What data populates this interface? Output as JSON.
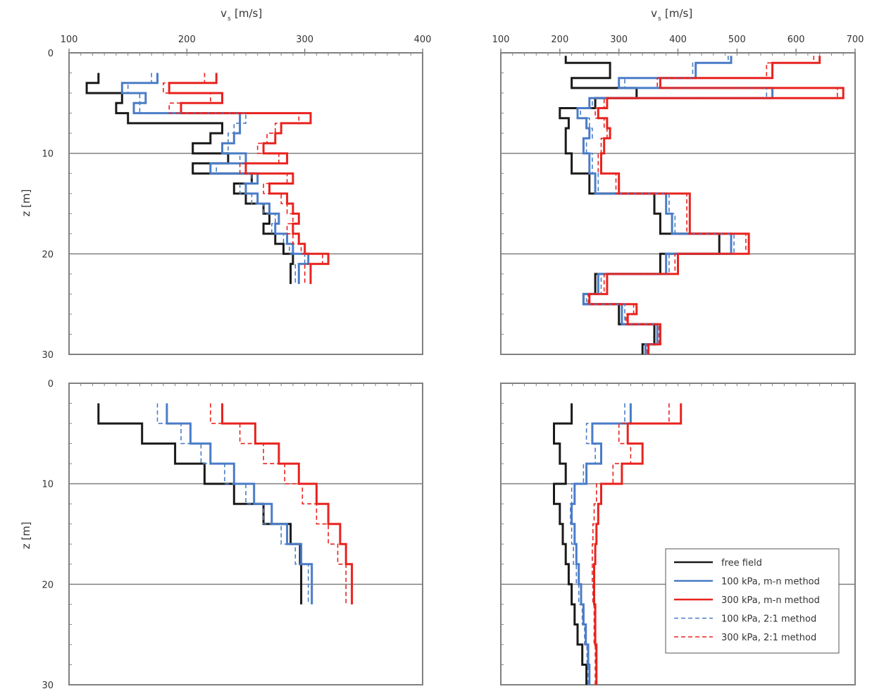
{
  "figure": {
    "top_axis_labels": [
      "v",
      "v"
    ],
    "top_axis_label_sub": "s",
    "top_axis_label_unit": "[m/s]",
    "z_axis_label": "z [m]"
  },
  "legend": {
    "placement": "bottom-right",
    "entries": [
      {
        "label": "free field",
        "color": "#1a1a1a",
        "dash": "solid"
      },
      {
        "label": "100 kPa, m-n method",
        "color": "#4a7cc7",
        "dash": "solid"
      },
      {
        "label": "300 kPa, m-n method",
        "color": "#e8231f",
        "dash": "solid"
      },
      {
        "label": "100 kPa, 2:1 method",
        "color": "#4a7cc7",
        "dash": "dashed"
      },
      {
        "label": "300 kPa, 2:1 method",
        "color": "#e8231f",
        "dash": "dashed"
      }
    ]
  },
  "colors": {
    "free": "#1a1a1a",
    "blue": "#4a7cc7",
    "red": "#e8231f",
    "axis": "#808080"
  },
  "chart_data": [
    {
      "type": "line",
      "panel": "top-left",
      "xlim": [
        100,
        400
      ],
      "ylim": [
        0,
        30
      ],
      "x_reversed_y": true,
      "x_ticks": [
        100,
        200,
        300,
        400
      ],
      "y_ticks": [
        0,
        10,
        20,
        30
      ],
      "grid_y": [
        10,
        20
      ],
      "xlabel": "v_s [m/s]",
      "ylabel": "z [m]",
      "z": [
        2,
        3,
        4,
        5,
        6,
        7,
        8,
        9,
        10,
        11,
        12,
        13,
        14,
        15,
        16,
        17,
        18,
        19,
        20,
        21,
        22
      ],
      "series": [
        {
          "name": "free field",
          "values": [
            125,
            115,
            145,
            140,
            150,
            230,
            220,
            205,
            235,
            205,
            255,
            240,
            250,
            265,
            270,
            265,
            275,
            282,
            290,
            288,
            288
          ]
        },
        {
          "name": "100 kPa, m-n method",
          "values": [
            175,
            145,
            165,
            155,
            245,
            245,
            240,
            230,
            250,
            220,
            260,
            250,
            260,
            270,
            278,
            275,
            285,
            290,
            303,
            295,
            295
          ]
        },
        {
          "name": "300 kPa, m-n method",
          "values": [
            225,
            185,
            230,
            195,
            305,
            280,
            275,
            265,
            285,
            250,
            290,
            270,
            285,
            290,
            295,
            290,
            295,
            300,
            320,
            305,
            305
          ]
        },
        {
          "name": "100 kPa, 2:1 method",
          "values": [
            170,
            150,
            160,
            160,
            250,
            240,
            235,
            235,
            245,
            225,
            255,
            245,
            255,
            265,
            275,
            272,
            282,
            287,
            300,
            292,
            292
          ]
        },
        {
          "name": "300 kPa, 2:1 method",
          "values": [
            215,
            180,
            220,
            185,
            295,
            275,
            268,
            260,
            278,
            245,
            285,
            265,
            280,
            285,
            290,
            285,
            290,
            297,
            315,
            300,
            300
          ]
        }
      ]
    },
    {
      "type": "line",
      "panel": "top-right",
      "xlim": [
        100,
        700
      ],
      "ylim": [
        0,
        30
      ],
      "x_reversed_y": true,
      "x_ticks": [
        100,
        200,
        300,
        400,
        500,
        600,
        700
      ],
      "y_ticks": [
        0,
        10,
        20,
        30
      ],
      "grid_y": [
        10,
        20
      ],
      "xlabel": "v_s [m/s]",
      "z": [
        0.3,
        1.0,
        2.5,
        3.5,
        4.5,
        5.5,
        6.5,
        7.5,
        8.5,
        10,
        12,
        14,
        16,
        18,
        20,
        22,
        24,
        25,
        26,
        27,
        29
      ],
      "series": [
        {
          "name": "free field",
          "values": [
            210,
            285,
            220,
            330,
            260,
            200,
            215,
            210,
            210,
            220,
            250,
            360,
            370,
            470,
            370,
            260,
            240,
            300,
            300,
            360,
            340
          ]
        },
        {
          "name": "100 kPa, m-n method",
          "values": [
            490,
            430,
            300,
            560,
            250,
            230,
            245,
            250,
            240,
            250,
            260,
            380,
            390,
            490,
            380,
            265,
            240,
            305,
            305,
            365,
            345
          ]
        },
        {
          "name": "300 kPa, m-n method",
          "values": [
            640,
            560,
            370,
            680,
            280,
            265,
            280,
            285,
            275,
            270,
            300,
            420,
            420,
            520,
            400,
            280,
            250,
            330,
            315,
            370,
            350
          ]
        },
        {
          "name": "100 kPa, 2:1 method",
          "values": [
            485,
            425,
            310,
            550,
            255,
            235,
            250,
            255,
            245,
            255,
            265,
            385,
            395,
            495,
            385,
            270,
            245,
            310,
            310,
            365,
            345
          ]
        },
        {
          "name": "300 kPa, 2:1 method",
          "values": [
            630,
            550,
            365,
            670,
            275,
            260,
            275,
            280,
            270,
            265,
            295,
            415,
            415,
            515,
            395,
            275,
            248,
            325,
            312,
            368,
            348
          ]
        }
      ]
    },
    {
      "type": "line",
      "panel": "bottom-left",
      "xlim": [
        100,
        400
      ],
      "ylim": [
        0,
        30
      ],
      "x_reversed_y": true,
      "x_ticks": [
        100,
        200,
        300,
        400
      ],
      "y_ticks": [
        0,
        10,
        20,
        30
      ],
      "grid_y": [
        10,
        20
      ],
      "ylabel": "z [m]",
      "z": [
        2,
        4,
        6,
        8,
        10,
        12,
        14,
        16,
        18,
        20
      ],
      "series": [
        {
          "name": "free field",
          "values": [
            125,
            162,
            190,
            215,
            240,
            265,
            288,
            296,
            297,
            297
          ]
        },
        {
          "name": "100 kPa, m-n method",
          "values": [
            183,
            203,
            220,
            240,
            257,
            272,
            285,
            297,
            306,
            306
          ]
        },
        {
          "name": "300 kPa, m-n method",
          "values": [
            230,
            258,
            278,
            295,
            310,
            320,
            330,
            335,
            340,
            340
          ]
        },
        {
          "name": "100 kPa, 2:1 method",
          "values": [
            175,
            195,
            212,
            232,
            250,
            265,
            280,
            292,
            303,
            303
          ]
        },
        {
          "name": "300 kPa, 2:1 method",
          "values": [
            220,
            245,
            265,
            283,
            298,
            310,
            320,
            328,
            335,
            335
          ]
        }
      ]
    },
    {
      "type": "line",
      "panel": "bottom-right",
      "xlim": [
        100,
        700
      ],
      "ylim": [
        0,
        30
      ],
      "x_reversed_y": true,
      "x_ticks": [
        100,
        200,
        300,
        400,
        500,
        600,
        700
      ],
      "y_ticks": [
        0,
        10,
        20,
        30
      ],
      "grid_y": [
        10,
        20
      ],
      "z": [
        2,
        4,
        6,
        8,
        10,
        12,
        14,
        16,
        18,
        20,
        22,
        24,
        26,
        28,
        30
      ],
      "series": [
        {
          "name": "free field",
          "values": [
            220,
            190,
            200,
            210,
            190,
            200,
            205,
            210,
            215,
            220,
            225,
            230,
            238,
            245,
            245
          ]
        },
        {
          "name": "100 kPa, m-n method",
          "values": [
            320,
            255,
            270,
            245,
            225,
            220,
            225,
            228,
            232,
            236,
            240,
            244,
            248,
            250,
            250
          ]
        },
        {
          "name": "300 kPa, m-n method",
          "values": [
            405,
            315,
            340,
            305,
            270,
            265,
            262,
            260,
            258,
            258,
            260,
            260,
            262,
            262,
            262
          ]
        },
        {
          "name": "100 kPa, 2:1 method",
          "values": [
            310,
            245,
            260,
            240,
            220,
            218,
            220,
            223,
            228,
            232,
            238,
            242,
            246,
            248,
            248
          ]
        },
        {
          "name": "300 kPa, 2:1 method",
          "values": [
            385,
            300,
            320,
            290,
            262,
            258,
            256,
            255,
            255,
            256,
            258,
            258,
            260,
            260,
            260
          ]
        }
      ]
    }
  ]
}
